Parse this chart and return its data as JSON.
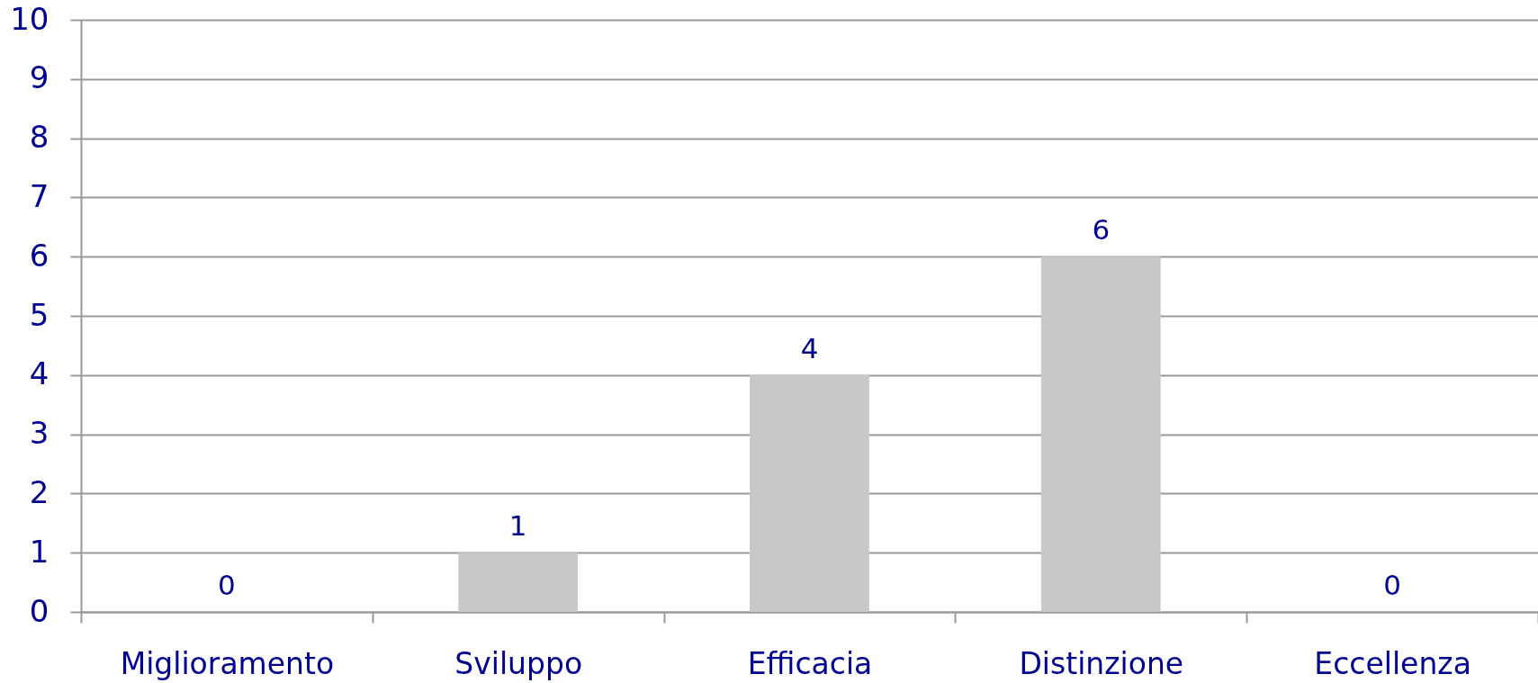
{
  "chart_data": {
    "type": "bar",
    "categories": [
      "Miglioramento",
      "Sviluppo",
      "Efficacia",
      "Distinzione",
      "Eccellenza"
    ],
    "values": [
      0,
      1,
      4,
      6,
      0
    ],
    "color": "#c8c8c8",
    "ylim": [
      0,
      10
    ],
    "yticks": [
      0,
      1,
      2,
      3,
      4,
      5,
      6,
      7,
      8,
      9,
      10
    ],
    "grid": "y",
    "data_labels": true
  }
}
